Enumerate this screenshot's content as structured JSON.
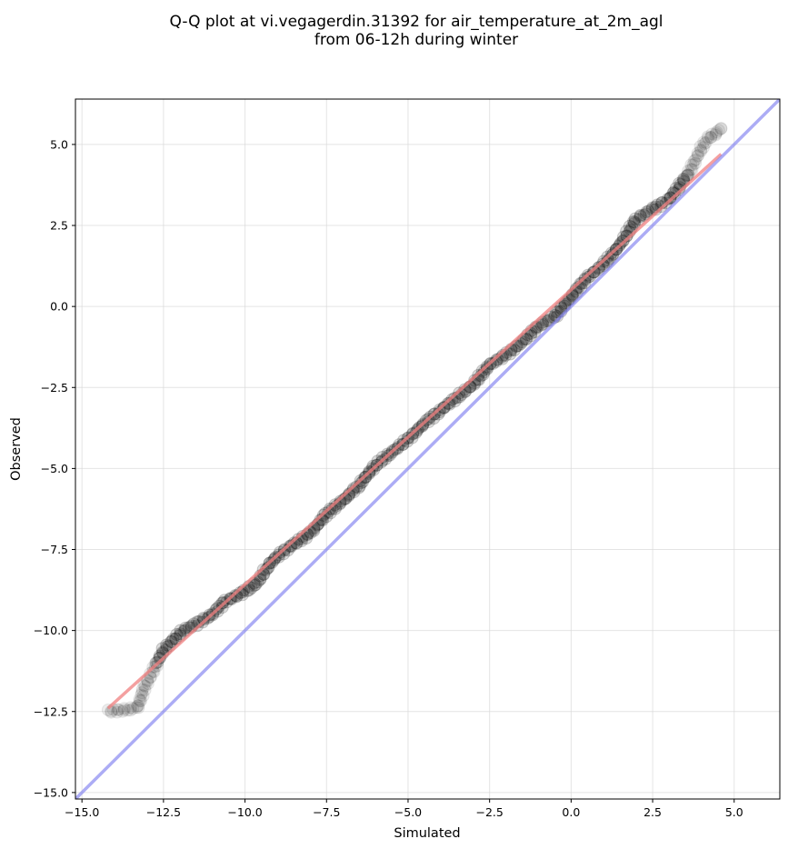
{
  "chart_data": {
    "type": "scatter",
    "title": "Q-Q plot at vi.vegagerdin.31392 for air_temperature_at_2m_agl",
    "subtitle": "from 06-12h during winter",
    "xlabel": "Simulated",
    "ylabel": "Observed",
    "xlim": [
      -15.2,
      6.4
    ],
    "ylim": [
      -15.2,
      6.4
    ],
    "xticks": [
      -15.0,
      -12.5,
      -10.0,
      -7.5,
      -5.0,
      -2.5,
      0.0,
      2.5,
      5.0
    ],
    "yticks": [
      -15.0,
      -12.5,
      -10.0,
      -7.5,
      -5.0,
      -2.5,
      0.0,
      2.5,
      5.0
    ],
    "xtick_labels": [
      "−15.0",
      "−12.5",
      "−10.0",
      "−7.5",
      "−5.0",
      "−2.5",
      "0.0",
      "2.5",
      "5.0"
    ],
    "ytick_labels": [
      "−15.0",
      "−12.5",
      "−10.0",
      "−7.5",
      "−5.0",
      "−2.5",
      "0.0",
      "2.5",
      "5.0"
    ],
    "grid": true,
    "legend": "none",
    "colors": {
      "points": "#000000",
      "fit_line": "#f08080",
      "identity_line": "#8080f0"
    },
    "quantile_curve": [
      [
        -14.2,
        -12.5
      ],
      [
        -13.3,
        -12.4
      ],
      [
        -13.1,
        -11.8
      ],
      [
        -12.9,
        -11.4
      ],
      [
        -12.7,
        -11.0
      ],
      [
        -12.5,
        -10.6
      ],
      [
        -12.2,
        -10.3
      ],
      [
        -11.9,
        -10.0
      ],
      [
        -11.5,
        -9.8
      ],
      [
        -11.0,
        -9.5
      ],
      [
        -10.6,
        -9.1
      ],
      [
        -10.0,
        -8.8
      ],
      [
        -9.6,
        -8.5
      ],
      [
        -9.3,
        -8.0
      ],
      [
        -9.0,
        -7.7
      ],
      [
        -8.6,
        -7.4
      ],
      [
        -8.0,
        -7.0
      ],
      [
        -7.5,
        -6.4
      ],
      [
        -6.9,
        -5.9
      ],
      [
        -6.5,
        -5.5
      ],
      [
        -6.0,
        -4.9
      ],
      [
        -5.5,
        -4.5
      ],
      [
        -5.0,
        -4.1
      ],
      [
        -4.5,
        -3.6
      ],
      [
        -4.0,
        -3.2
      ],
      [
        -3.5,
        -2.8
      ],
      [
        -3.0,
        -2.4
      ],
      [
        -2.5,
        -1.8
      ],
      [
        -2.0,
        -1.5
      ],
      [
        -1.5,
        -1.1
      ],
      [
        -1.0,
        -0.6
      ],
      [
        -0.5,
        -0.3
      ],
      [
        0.0,
        0.3
      ],
      [
        0.5,
        0.9
      ],
      [
        1.0,
        1.3
      ],
      [
        1.5,
        1.9
      ],
      [
        2.0,
        2.7
      ],
      [
        2.5,
        3.0
      ],
      [
        3.0,
        3.3
      ],
      [
        3.3,
        3.7
      ],
      [
        3.6,
        4.1
      ],
      [
        3.8,
        4.5
      ],
      [
        4.0,
        4.9
      ],
      [
        4.2,
        5.2
      ],
      [
        4.4,
        5.3
      ],
      [
        4.6,
        5.5
      ]
    ],
    "fit_line": [
      [
        -14.2,
        -12.4
      ],
      [
        4.6,
        4.7
      ]
    ],
    "identity_line": [
      [
        -15.2,
        -15.2
      ],
      [
        6.4,
        6.4
      ]
    ]
  }
}
